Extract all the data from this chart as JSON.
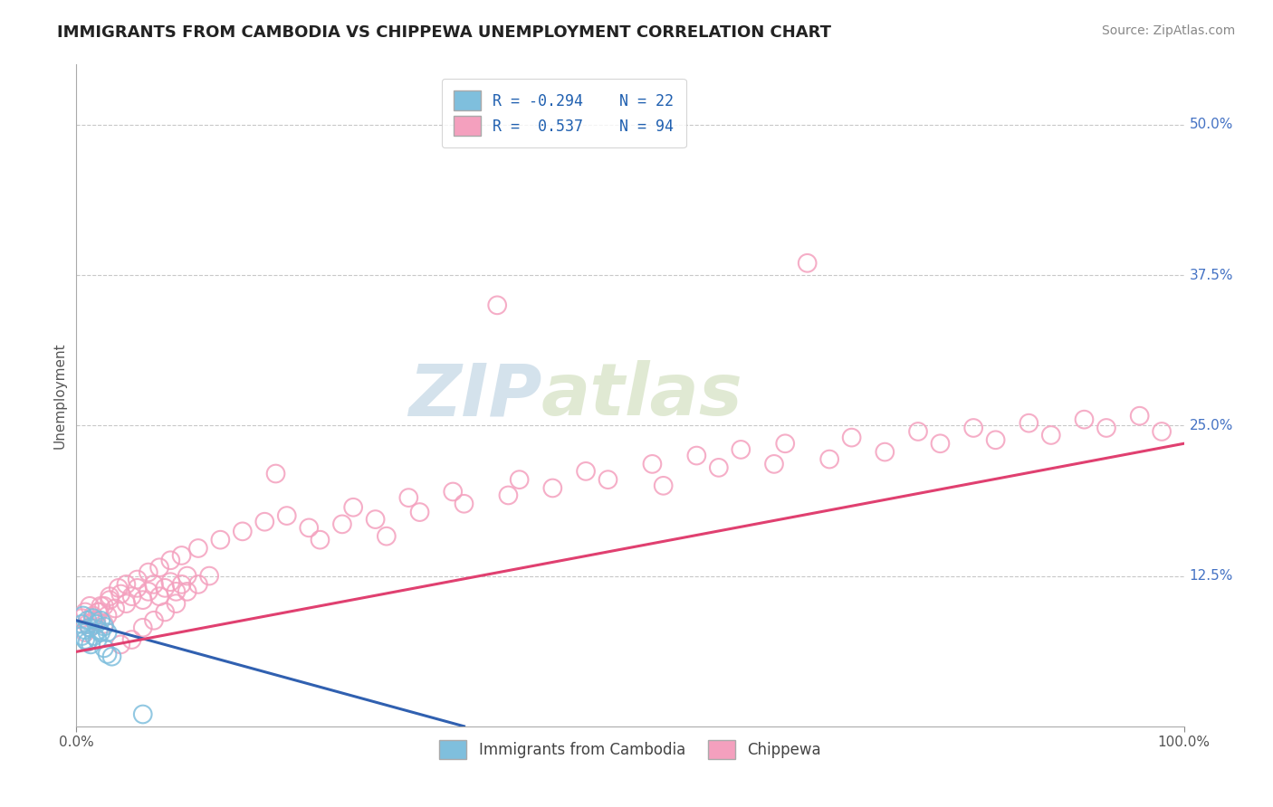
{
  "title": "IMMIGRANTS FROM CAMBODIA VS CHIPPEWA UNEMPLOYMENT CORRELATION CHART",
  "source": "Source: ZipAtlas.com",
  "ylabel": "Unemployment",
  "xlim": [
    0.0,
    1.0
  ],
  "ylim": [
    0.0,
    0.55
  ],
  "y_tick_labels": [
    "12.5%",
    "25.0%",
    "37.5%",
    "50.0%"
  ],
  "y_tick_values": [
    0.125,
    0.25,
    0.375,
    0.5
  ],
  "background_color": "#ffffff",
  "blue_color": "#7fbfdd",
  "pink_color": "#f4a0be",
  "blue_line_color": "#3060b0",
  "pink_line_color": "#e04070",
  "blue_scatter_x": [
    0.005,
    0.008,
    0.01,
    0.012,
    0.015,
    0.018,
    0.02,
    0.022,
    0.025,
    0.028,
    0.005,
    0.008,
    0.01,
    0.013,
    0.016,
    0.019,
    0.022,
    0.025,
    0.028,
    0.032,
    0.006,
    0.06
  ],
  "blue_scatter_y": [
    0.085,
    0.08,
    0.088,
    0.082,
    0.09,
    0.085,
    0.08,
    0.088,
    0.083,
    0.078,
    0.075,
    0.072,
    0.07,
    0.068,
    0.075,
    0.072,
    0.078,
    0.065,
    0.06,
    0.058,
    0.092,
    0.01
  ],
  "pink_scatter_x": [
    0.005,
    0.008,
    0.01,
    0.012,
    0.015,
    0.018,
    0.02,
    0.022,
    0.025,
    0.028,
    0.03,
    0.035,
    0.04,
    0.045,
    0.05,
    0.055,
    0.06,
    0.065,
    0.07,
    0.075,
    0.08,
    0.085,
    0.09,
    0.095,
    0.1,
    0.008,
    0.012,
    0.016,
    0.02,
    0.025,
    0.03,
    0.038,
    0.045,
    0.055,
    0.065,
    0.075,
    0.085,
    0.095,
    0.11,
    0.13,
    0.15,
    0.17,
    0.19,
    0.21,
    0.24,
    0.27,
    0.31,
    0.35,
    0.39,
    0.43,
    0.48,
    0.53,
    0.58,
    0.63,
    0.68,
    0.73,
    0.78,
    0.83,
    0.88,
    0.93,
    0.98,
    0.04,
    0.05,
    0.06,
    0.07,
    0.08,
    0.09,
    0.1,
    0.11,
    0.12,
    0.25,
    0.3,
    0.34,
    0.4,
    0.46,
    0.52,
    0.56,
    0.6,
    0.64,
    0.7,
    0.76,
    0.81,
    0.86,
    0.91,
    0.96,
    0.18,
    0.22,
    0.28,
    0.38,
    0.66
  ],
  "pink_scatter_y": [
    0.09,
    0.095,
    0.085,
    0.1,
    0.092,
    0.088,
    0.095,
    0.1,
    0.085,
    0.092,
    0.105,
    0.098,
    0.11,
    0.102,
    0.108,
    0.115,
    0.105,
    0.112,
    0.118,
    0.108,
    0.115,
    0.12,
    0.112,
    0.118,
    0.125,
    0.078,
    0.082,
    0.088,
    0.095,
    0.1,
    0.108,
    0.115,
    0.118,
    0.122,
    0.128,
    0.132,
    0.138,
    0.142,
    0.148,
    0.155,
    0.162,
    0.17,
    0.175,
    0.165,
    0.168,
    0.172,
    0.178,
    0.185,
    0.192,
    0.198,
    0.205,
    0.2,
    0.215,
    0.218,
    0.222,
    0.228,
    0.235,
    0.238,
    0.242,
    0.248,
    0.245,
    0.068,
    0.072,
    0.082,
    0.088,
    0.095,
    0.102,
    0.112,
    0.118,
    0.125,
    0.182,
    0.19,
    0.195,
    0.205,
    0.212,
    0.218,
    0.225,
    0.23,
    0.235,
    0.24,
    0.245,
    0.248,
    0.252,
    0.255,
    0.258,
    0.21,
    0.155,
    0.158,
    0.35,
    0.385
  ],
  "blue_line_x": [
    0.0,
    0.35
  ],
  "blue_line_y": [
    0.088,
    0.0
  ],
  "pink_line_x": [
    0.0,
    1.0
  ],
  "pink_line_y": [
    0.062,
    0.235
  ]
}
